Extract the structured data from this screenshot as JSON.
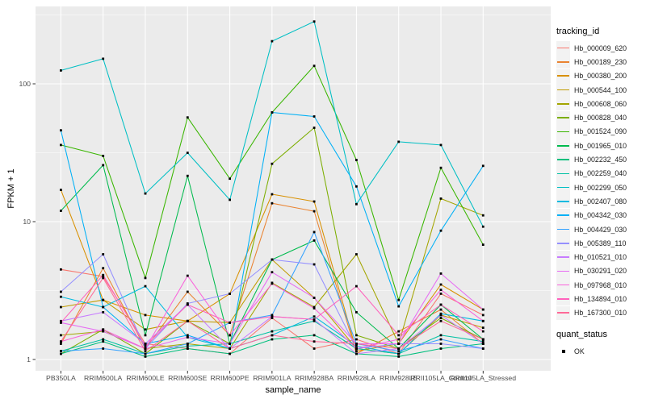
{
  "figure": {
    "background": "#FFFFFF",
    "panel_background": "#EBEBEB",
    "grid_color": "#FFFFFF",
    "point_color": "#000000",
    "axis_text_color": "#4D4D4D",
    "axis_title_color": "#000000",
    "legend_key_background": "#F2F2F2"
  },
  "chart_data": {
    "type": "line",
    "title": "",
    "xlabel": "sample_name",
    "ylabel": "FPKM + 1",
    "yscale": "log10",
    "yticks": [
      1,
      10,
      100
    ],
    "yminor": [
      3.1623,
      31.623,
      316.23
    ],
    "ylim": [
      0.85,
      380
    ],
    "grid": true,
    "legend_position": "right",
    "legend_title": "tracking_id",
    "marker": "black-square",
    "categories": [
      "PB350LA",
      "RRIM600LA",
      "RRIM600LE",
      "RRIM600SE",
      "RRIM600PE",
      "RRIM901LA",
      "RRIM928BA",
      "RRIM928LA",
      "RRIM928LE",
      "RRII105LA_Control",
      "RRII105LA_Stressed"
    ],
    "series": [
      {
        "name": "Hb_000009_620",
        "color": "#F8766D",
        "values": [
          4.5,
          4.0,
          1.3,
          1.2,
          1.1,
          2.0,
          1.2,
          1.4,
          1.1,
          3.0,
          2.1
        ]
      },
      {
        "name": "Hb_000189_230",
        "color": "#EA8331",
        "values": [
          1.3,
          4.6,
          1.2,
          3.1,
          1.5,
          13.6,
          11.9,
          1.1,
          1.6,
          2.3,
          1.3
        ]
      },
      {
        "name": "Hb_000380_200",
        "color": "#D89000",
        "values": [
          17.0,
          2.7,
          2.1,
          1.9,
          3.0,
          15.8,
          14.0,
          1.15,
          1.3,
          3.5,
          2.3
        ]
      },
      {
        "name": "Hb_000544_100",
        "color": "#C09B00",
        "values": [
          2.4,
          2.7,
          1.65,
          1.9,
          1.85,
          5.3,
          2.8,
          1.2,
          1.1,
          2.1,
          1.7
        ]
      },
      {
        "name": "Hb_000608_060",
        "color": "#A3A500",
        "values": [
          1.5,
          1.6,
          1.2,
          1.3,
          1.2,
          3.6,
          2.4,
          5.8,
          1.3,
          14.7,
          11.1
        ]
      },
      {
        "name": "Hb_000828_040",
        "color": "#7CAE00",
        "values": [
          1.1,
          1.65,
          1.1,
          1.9,
          1.3,
          26.3,
          48.0,
          1.5,
          1.2,
          2.0,
          1.4
        ]
      },
      {
        "name": "Hb_001524_090",
        "color": "#39B600",
        "values": [
          36.0,
          30.0,
          3.9,
          57.0,
          20.5,
          62.0,
          135.0,
          28.0,
          2.7,
          24.6,
          6.8
        ]
      },
      {
        "name": "Hb_001965_010",
        "color": "#00BB4E",
        "values": [
          12.0,
          25.7,
          1.5,
          21.5,
          1.3,
          5.3,
          7.3,
          2.2,
          1.2,
          2.5,
          1.4
        ]
      },
      {
        "name": "Hb_002232_450",
        "color": "#00BF7D",
        "values": [
          1.1,
          1.35,
          1.05,
          1.2,
          1.1,
          1.4,
          1.5,
          1.1,
          1.05,
          1.2,
          1.3
        ]
      },
      {
        "name": "Hb_002259_040",
        "color": "#00C1A3",
        "values": [
          1.15,
          1.4,
          1.1,
          1.25,
          1.3,
          1.6,
          1.9,
          1.2,
          1.1,
          1.5,
          1.35
        ]
      },
      {
        "name": "Hb_002299_050",
        "color": "#00BFC4",
        "values": [
          125.0,
          152.0,
          16.0,
          31.6,
          14.4,
          204.0,
          283.0,
          13.4,
          38.0,
          36.0,
          9.2
        ]
      },
      {
        "name": "Hb_002407_080",
        "color": "#00BAE0",
        "values": [
          2.85,
          2.4,
          3.4,
          1.45,
          1.2,
          1.5,
          2.05,
          1.25,
          1.1,
          2.15,
          1.9
        ]
      },
      {
        "name": "Hb_004342_030",
        "color": "#00B0F6",
        "values": [
          46.0,
          2.4,
          1.3,
          1.5,
          1.2,
          62.0,
          58.0,
          18.0,
          2.43,
          8.6,
          25.4
        ]
      },
      {
        "name": "Hb_004429_030",
        "color": "#35A2FF",
        "values": [
          1.15,
          1.2,
          1.1,
          1.3,
          1.85,
          2.1,
          8.4,
          1.3,
          1.15,
          1.4,
          1.2
        ]
      },
      {
        "name": "Hb_005389_110",
        "color": "#9590FF",
        "values": [
          3.1,
          5.8,
          1.2,
          2.55,
          3.0,
          5.3,
          4.9,
          1.2,
          1.3,
          1.3,
          1.2
        ]
      },
      {
        "name": "Hb_010521_010",
        "color": "#C77CFF",
        "values": [
          1.9,
          2.2,
          1.3,
          2.5,
          1.2,
          2.05,
          1.95,
          1.1,
          1.2,
          2.1,
          1.3
        ]
      },
      {
        "name": "Hb_030291_020",
        "color": "#E76BF3",
        "values": [
          1.85,
          1.6,
          1.2,
          1.45,
          1.3,
          4.3,
          2.8,
          1.3,
          1.3,
          4.2,
          2.3
        ]
      },
      {
        "name": "Hb_097968_010",
        "color": "#FA62DB",
        "values": [
          1.35,
          1.65,
          1.2,
          4.05,
          1.5,
          3.55,
          2.35,
          1.2,
          1.4,
          3.2,
          1.9
        ]
      },
      {
        "name": "Hb_134894_010",
        "color": "#FF62BC",
        "values": [
          1.85,
          4.1,
          1.25,
          2.5,
          1.85,
          2.05,
          1.95,
          3.4,
          1.5,
          2.5,
          1.6
        ]
      },
      {
        "name": "Hb_167300_010",
        "color": "#FF6A98",
        "values": [
          1.35,
          3.9,
          1.15,
          1.9,
          1.2,
          1.5,
          1.35,
          1.3,
          1.2,
          1.9,
          1.4
        ]
      }
    ],
    "quant_legend": {
      "title": "quant_status",
      "entries": [
        {
          "label": "OK",
          "marker": "square",
          "color": "#000000"
        }
      ]
    }
  }
}
